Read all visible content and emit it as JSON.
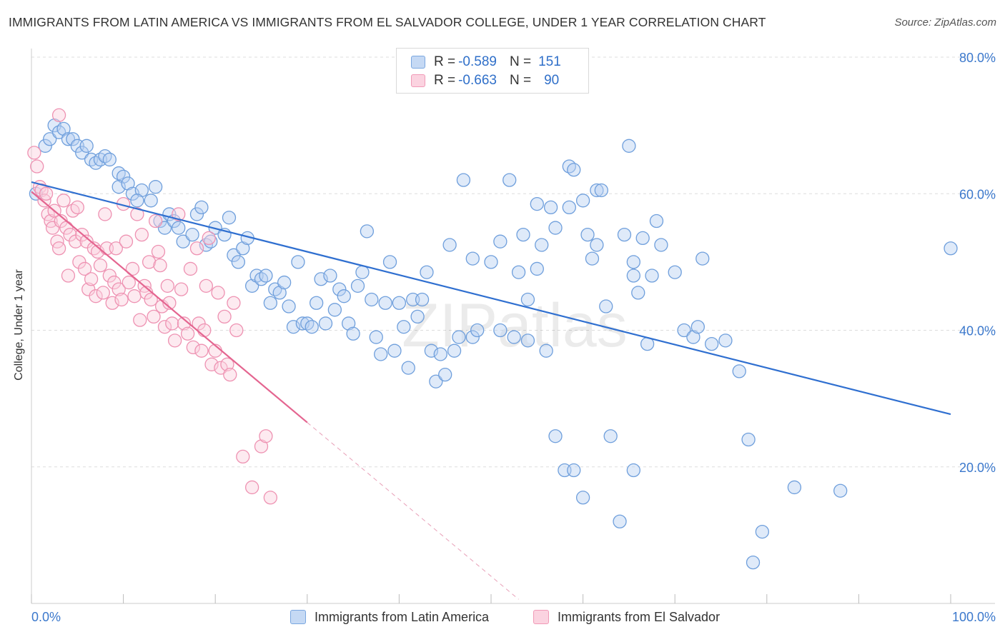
{
  "title": "IMMIGRANTS FROM LATIN AMERICA VS IMMIGRANTS FROM EL SALVADOR COLLEGE, UNDER 1 YEAR CORRELATION CHART",
  "source": "Source: ZipAtlas.com",
  "watermark": "ZIPatlas",
  "legend": {
    "r_label": "R =",
    "n_label": "N =",
    "items": [
      {
        "r": "-0.589",
        "n": "151",
        "color": "#7aa7e0"
      },
      {
        "r": "-0.663",
        "n": "90",
        "color": "#f19ab7"
      }
    ]
  },
  "chart_data": {
    "type": "scatter",
    "xlabel": "",
    "ylabel": "College, Under 1 year",
    "xlim": [
      0,
      100
    ],
    "ylim": [
      0,
      80
    ],
    "x_tick_labels": [
      "0.0%",
      "100.0%"
    ],
    "y_tick_labels": [
      "20.0%",
      "40.0%",
      "60.0%",
      "80.0%"
    ],
    "y_ticks": [
      20,
      40,
      60,
      80
    ],
    "grid": true,
    "series": [
      {
        "name": "Immigrants from Latin America",
        "color": "#4a86d8",
        "trend": {
          "x": [
            0,
            100
          ],
          "y": [
            61.7,
            27.7
          ]
        },
        "points": [
          [
            0.5,
            60
          ],
          [
            1.5,
            67
          ],
          [
            2,
            68
          ],
          [
            2.5,
            70
          ],
          [
            3,
            69
          ],
          [
            3.5,
            69.5
          ],
          [
            4,
            68
          ],
          [
            4.5,
            68
          ],
          [
            5,
            67
          ],
          [
            5.5,
            66
          ],
          [
            6,
            67
          ],
          [
            6.5,
            65
          ],
          [
            7,
            64.5
          ],
          [
            7.5,
            65
          ],
          [
            8,
            65.5
          ],
          [
            8.5,
            65
          ],
          [
            9.5,
            63
          ],
          [
            10,
            62.5
          ],
          [
            9.5,
            61
          ],
          [
            10.5,
            61.5
          ],
          [
            11,
            60
          ],
          [
            12,
            60.5
          ],
          [
            11.5,
            59
          ],
          [
            13,
            59
          ],
          [
            13.5,
            61
          ],
          [
            14,
            56
          ],
          [
            14.5,
            55
          ],
          [
            15,
            57
          ],
          [
            15.5,
            56
          ],
          [
            16,
            55
          ],
          [
            16.5,
            53
          ],
          [
            17.5,
            54
          ],
          [
            18,
            57
          ],
          [
            18.5,
            58
          ],
          [
            19,
            52.5
          ],
          [
            19.5,
            53
          ],
          [
            20,
            55
          ],
          [
            21,
            54
          ],
          [
            21.5,
            56.5
          ],
          [
            22,
            51
          ],
          [
            22.5,
            50
          ],
          [
            23,
            52
          ],
          [
            23.5,
            53.5
          ],
          [
            24,
            46.5
          ],
          [
            24.5,
            48
          ],
          [
            25,
            47.5
          ],
          [
            25.5,
            48
          ],
          [
            26,
            44
          ],
          [
            26.5,
            46
          ],
          [
            27,
            45.5
          ],
          [
            27.5,
            47
          ],
          [
            28,
            43.5
          ],
          [
            28.5,
            40.5
          ],
          [
            29,
            50
          ],
          [
            29.5,
            41
          ],
          [
            30,
            41
          ],
          [
            30.5,
            40.5
          ],
          [
            31,
            44
          ],
          [
            31.5,
            47.5
          ],
          [
            32,
            41
          ],
          [
            32.5,
            48
          ],
          [
            33,
            43
          ],
          [
            33.5,
            46
          ],
          [
            34,
            45
          ],
          [
            34.5,
            41
          ],
          [
            35,
            39.5
          ],
          [
            35.5,
            46.5
          ],
          [
            36,
            48.5
          ],
          [
            36.5,
            54.5
          ],
          [
            37,
            44.5
          ],
          [
            37.5,
            39
          ],
          [
            38,
            36.5
          ],
          [
            38.5,
            44
          ],
          [
            39,
            50
          ],
          [
            39.5,
            37
          ],
          [
            40,
            44
          ],
          [
            40.5,
            40.5
          ],
          [
            41,
            34.5
          ],
          [
            41.5,
            44.5
          ],
          [
            42,
            42
          ],
          [
            42.5,
            44.5
          ],
          [
            43,
            48.5
          ],
          [
            43.5,
            37
          ],
          [
            44,
            32.5
          ],
          [
            44.5,
            36.5
          ],
          [
            45,
            33.5
          ],
          [
            45.5,
            52.5
          ],
          [
            46,
            37
          ],
          [
            46.5,
            39
          ],
          [
            47,
            62
          ],
          [
            48,
            39
          ],
          [
            48.5,
            40
          ],
          [
            48,
            50.5
          ],
          [
            50,
            50
          ],
          [
            51,
            40
          ],
          [
            51,
            53
          ],
          [
            52,
            62
          ],
          [
            52.5,
            39
          ],
          [
            53,
            48.5
          ],
          [
            53.5,
            54
          ],
          [
            54,
            44.5
          ],
          [
            54,
            38.5
          ],
          [
            55,
            49
          ],
          [
            55,
            58.5
          ],
          [
            55.5,
            52.5
          ],
          [
            56,
            37
          ],
          [
            56.5,
            58
          ],
          [
            57,
            55
          ],
          [
            57,
            24.5
          ],
          [
            58,
            19.5
          ],
          [
            58.5,
            58
          ],
          [
            58.5,
            64
          ],
          [
            59,
            63.5
          ],
          [
            60,
            59
          ],
          [
            60.5,
            54
          ],
          [
            60,
            15.5
          ],
          [
            59,
            19.5
          ],
          [
            61,
            50.5
          ],
          [
            61.5,
            52.5
          ],
          [
            61.5,
            60.5
          ],
          [
            62,
            60.5
          ],
          [
            62.5,
            43.5
          ],
          [
            63,
            24.5
          ],
          [
            64,
            12
          ],
          [
            64.5,
            54
          ],
          [
            65,
            67
          ],
          [
            65.5,
            50
          ],
          [
            65.5,
            48
          ],
          [
            65.5,
            19.5
          ],
          [
            66,
            45.5
          ],
          [
            66.5,
            53.5
          ],
          [
            67,
            38
          ],
          [
            67.5,
            48
          ],
          [
            68,
            56
          ],
          [
            68.5,
            52.5
          ],
          [
            70,
            48.5
          ],
          [
            71,
            40
          ],
          [
            72,
            39
          ],
          [
            72.5,
            40.5
          ],
          [
            73,
            50.5
          ],
          [
            74,
            38
          ],
          [
            75.5,
            38.5
          ],
          [
            77,
            34
          ],
          [
            78,
            24
          ],
          [
            78.5,
            6
          ],
          [
            79.5,
            10.5
          ],
          [
            83,
            17
          ],
          [
            88,
            16.5
          ],
          [
            100,
            52
          ]
        ]
      },
      {
        "name": "Immigrants from El Salvador",
        "color": "#ec7ba0",
        "trend": {
          "x": [
            0,
            30
          ],
          "y": [
            60.3,
            26.5
          ]
        },
        "trend_dashed": {
          "x": [
            30,
            53
          ],
          "y": [
            26.5,
            0.6
          ]
        },
        "points": [
          [
            0.3,
            66
          ],
          [
            0.6,
            64
          ],
          [
            0.9,
            61
          ],
          [
            1.1,
            60.5
          ],
          [
            1.4,
            59
          ],
          [
            1.6,
            60
          ],
          [
            1.8,
            57
          ],
          [
            2.1,
            56
          ],
          [
            2.3,
            55
          ],
          [
            2.5,
            57.5
          ],
          [
            2.8,
            53
          ],
          [
            3,
            52
          ],
          [
            3.2,
            56
          ],
          [
            3.5,
            59
          ],
          [
            3.8,
            55
          ],
          [
            4,
            48
          ],
          [
            4.2,
            54
          ],
          [
            4.5,
            57.5
          ],
          [
            4.8,
            53
          ],
          [
            5,
            58
          ],
          [
            5.2,
            50
          ],
          [
            5.5,
            54
          ],
          [
            5.8,
            49
          ],
          [
            6,
            53
          ],
          [
            6.2,
            46
          ],
          [
            6.5,
            47.5
          ],
          [
            6.8,
            52
          ],
          [
            7,
            45
          ],
          [
            7.2,
            51.5
          ],
          [
            7.5,
            49.5
          ],
          [
            7.8,
            45.5
          ],
          [
            8,
            57
          ],
          [
            8.2,
            52
          ],
          [
            8.5,
            48
          ],
          [
            8.8,
            44
          ],
          [
            9,
            47
          ],
          [
            9.2,
            52
          ],
          [
            9.5,
            46
          ],
          [
            9.8,
            44.5
          ],
          [
            10,
            58.5
          ],
          [
            10.3,
            53
          ],
          [
            10.6,
            47
          ],
          [
            11,
            49
          ],
          [
            11.2,
            45
          ],
          [
            11.5,
            57
          ],
          [
            11.8,
            41.5
          ],
          [
            12,
            54
          ],
          [
            12.3,
            46.5
          ],
          [
            12.5,
            45.5
          ],
          [
            12.8,
            50
          ],
          [
            13,
            44.5
          ],
          [
            13.3,
            42
          ],
          [
            13.5,
            56
          ],
          [
            13.8,
            51.5
          ],
          [
            14,
            49.5
          ],
          [
            14.2,
            43.5
          ],
          [
            14.5,
            40.5
          ],
          [
            14.8,
            46.5
          ],
          [
            15,
            44
          ],
          [
            15.3,
            41
          ],
          [
            15.6,
            38.5
          ],
          [
            16,
            57
          ],
          [
            16.3,
            46
          ],
          [
            16.6,
            41
          ],
          [
            17,
            39.5
          ],
          [
            17.3,
            49
          ],
          [
            17.6,
            37.5
          ],
          [
            18,
            52
          ],
          [
            18.2,
            41
          ],
          [
            18.5,
            37
          ],
          [
            18.8,
            40
          ],
          [
            19,
            46.5
          ],
          [
            19.3,
            53.5
          ],
          [
            19.6,
            35
          ],
          [
            20,
            37
          ],
          [
            20.3,
            45.5
          ],
          [
            20.6,
            34.5
          ],
          [
            21,
            42
          ],
          [
            21.3,
            35
          ],
          [
            21.6,
            33.5
          ],
          [
            22,
            44
          ],
          [
            22.3,
            40
          ],
          [
            23,
            21.5
          ],
          [
            24,
            17
          ],
          [
            25,
            23
          ],
          [
            25.5,
            24.5
          ],
          [
            26,
            15.5
          ],
          [
            3,
            71.5
          ]
        ]
      }
    ]
  }
}
